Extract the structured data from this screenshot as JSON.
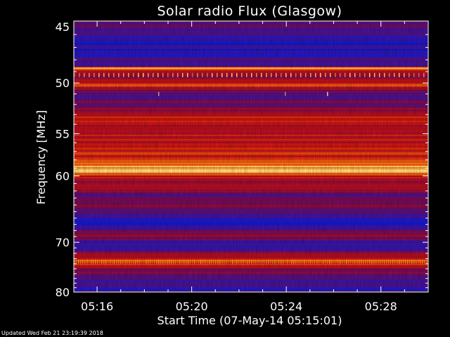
{
  "chart_data": {
    "type": "heatmap",
    "title": "Solar radio Flux (Glasgow)",
    "xlabel": "Start Time (07-May-14 05:15:01)",
    "ylabel": "Frequency [MHz]",
    "x_ticks": [
      "05:16",
      "05:20",
      "05:24",
      "05:28"
    ],
    "x_tick_minutes": [
      16,
      20,
      24,
      28
    ],
    "x_range_minutes": [
      15.0167,
      30.0
    ],
    "y_ticks": [
      45,
      50,
      55,
      60,
      70,
      80
    ],
    "y_range": [
      45,
      80
    ],
    "y_scale": "reciprocal",
    "colormap": [
      "#0a0a80",
      "#1a1ad0",
      "#7a0a50",
      "#c81010",
      "#ff7a10",
      "#ffffa0"
    ],
    "frequency_intensity": [
      {
        "f": 45.0,
        "v": 0.35
      },
      {
        "f": 46.0,
        "v": 0.25
      },
      {
        "f": 47.0,
        "v": 0.2
      },
      {
        "f": 48.5,
        "v": 0.3
      },
      {
        "f": 48.7,
        "v": 0.95
      },
      {
        "f": 49.0,
        "v": 0.5
      },
      {
        "f": 49.6,
        "v": 0.45
      },
      {
        "f": 50.2,
        "v": 0.7
      },
      {
        "f": 51.0,
        "v": 0.3
      },
      {
        "f": 52.0,
        "v": 0.4
      },
      {
        "f": 53.2,
        "v": 0.62
      },
      {
        "f": 54.5,
        "v": 0.55
      },
      {
        "f": 56.5,
        "v": 0.6
      },
      {
        "f": 58.0,
        "v": 0.65
      },
      {
        "f": 59.3,
        "v": 0.98
      },
      {
        "f": 60.0,
        "v": 0.6
      },
      {
        "f": 61.5,
        "v": 0.48
      },
      {
        "f": 63.0,
        "v": 0.35
      },
      {
        "f": 64.5,
        "v": 0.4
      },
      {
        "f": 66.0,
        "v": 0.25
      },
      {
        "f": 67.5,
        "v": 0.2
      },
      {
        "f": 68.8,
        "v": 0.5
      },
      {
        "f": 70.0,
        "v": 0.28
      },
      {
        "f": 71.5,
        "v": 0.35
      },
      {
        "f": 72.5,
        "v": 0.55
      },
      {
        "f": 73.6,
        "v": 0.72
      },
      {
        "f": 75.0,
        "v": 0.45
      },
      {
        "f": 77.0,
        "v": 0.3
      },
      {
        "f": 79.0,
        "v": 0.25
      },
      {
        "f": 80.0,
        "v": 0.3
      }
    ],
    "bursts_mhz": [
      49.3,
      51.0,
      73.6
    ]
  },
  "footer": "Updated Wed Feb 21 23:19:39 2018"
}
